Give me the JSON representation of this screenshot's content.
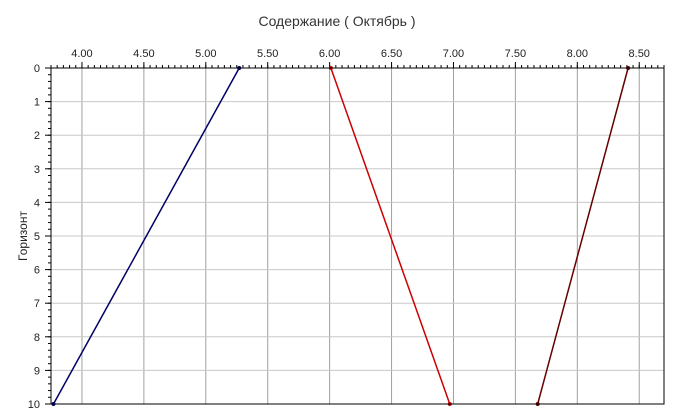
{
  "chart_data": {
    "type": "line",
    "title": "Содержание    ( Октябрь )",
    "xlabel": "",
    "ylabel": "Горизонт",
    "x_axis_position": "top",
    "y_axis_inverted": true,
    "xlim": [
      3.75,
      8.7
    ],
    "ylim": [
      0,
      10
    ],
    "x_ticks": [
      "4.00",
      "4.50",
      "5.00",
      "5.50",
      "6.00",
      "6.50",
      "7.00",
      "7.50",
      "8.00",
      "8.50"
    ],
    "y_ticks": [
      "0",
      "1",
      "2",
      "3",
      "4",
      "5",
      "6",
      "7",
      "8",
      "9",
      "10"
    ],
    "grid": true,
    "legend": "none",
    "series": [
      {
        "color": "#000066",
        "points": [
          [
            5.27,
            0
          ],
          [
            3.77,
            10
          ]
        ]
      },
      {
        "color": "#cc0000",
        "points": [
          [
            6.01,
            0
          ],
          [
            6.97,
            10
          ]
        ]
      },
      {
        "color": "#660000",
        "points": [
          [
            8.41,
            0
          ],
          [
            7.68,
            10
          ]
        ]
      }
    ]
  }
}
